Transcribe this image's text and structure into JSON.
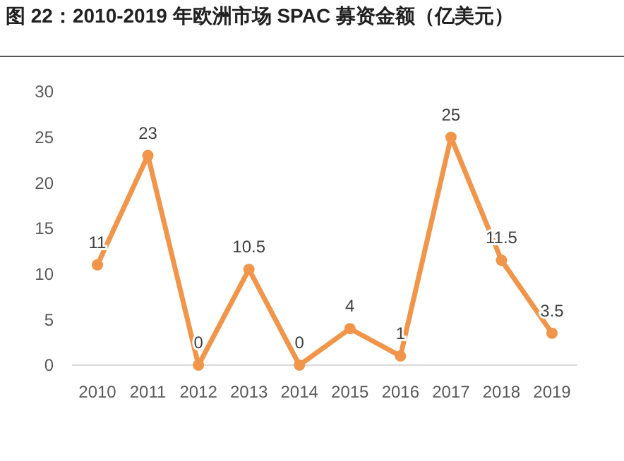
{
  "chart_data": {
    "type": "line",
    "title": "图 22：2010-2019 年欧洲市场 SPAC 募资金额（亿美元）",
    "categories": [
      "2010",
      "2011",
      "2012",
      "2013",
      "2014",
      "2015",
      "2016",
      "2017",
      "2018",
      "2019"
    ],
    "series": [
      {
        "color": "#f0954a",
        "values": [
          11,
          23,
          0,
          10.5,
          0,
          4,
          1,
          25,
          11.5,
          3.5
        ]
      }
    ],
    "ylim": [
      0,
      30
    ],
    "yticks": [
      0,
      5,
      10,
      15,
      20,
      25,
      30
    ],
    "grid": false,
    "marker": "circle",
    "line_style": "solid",
    "data_labels": true
  }
}
